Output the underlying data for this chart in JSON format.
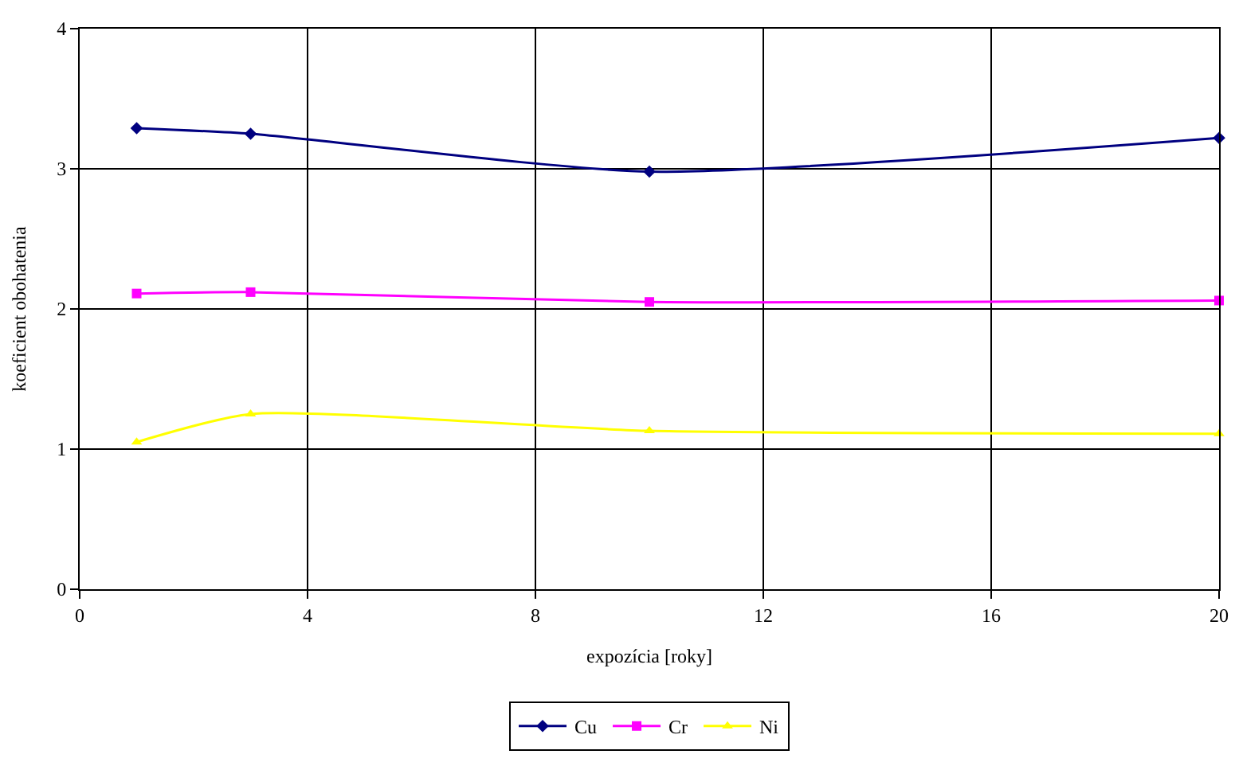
{
  "chart_data": {
    "type": "line",
    "xlabel": "expozícia [roky]",
    "ylabel": "koeficient obohatenia",
    "x": [
      1,
      3,
      10,
      20
    ],
    "series": [
      {
        "name": "Cu",
        "color": "#000080",
        "marker": "diamond",
        "values": [
          3.29,
          3.25,
          2.98,
          3.22
        ]
      },
      {
        "name": "Cr",
        "color": "#ff00ff",
        "marker": "square",
        "values": [
          2.11,
          2.12,
          2.05,
          2.06
        ]
      },
      {
        "name": "Ni",
        "color": "#ffff00",
        "marker": "triangle",
        "values": [
          1.05,
          1.25,
          1.13,
          1.11
        ]
      }
    ],
    "xlim": [
      0,
      20
    ],
    "xticks": [
      0,
      4,
      8,
      12,
      16,
      20
    ],
    "ylim": [
      0,
      4
    ],
    "yticks": [
      0,
      1,
      2,
      3,
      4
    ],
    "grid": true,
    "legend": "bottom",
    "line_style": "solid"
  }
}
